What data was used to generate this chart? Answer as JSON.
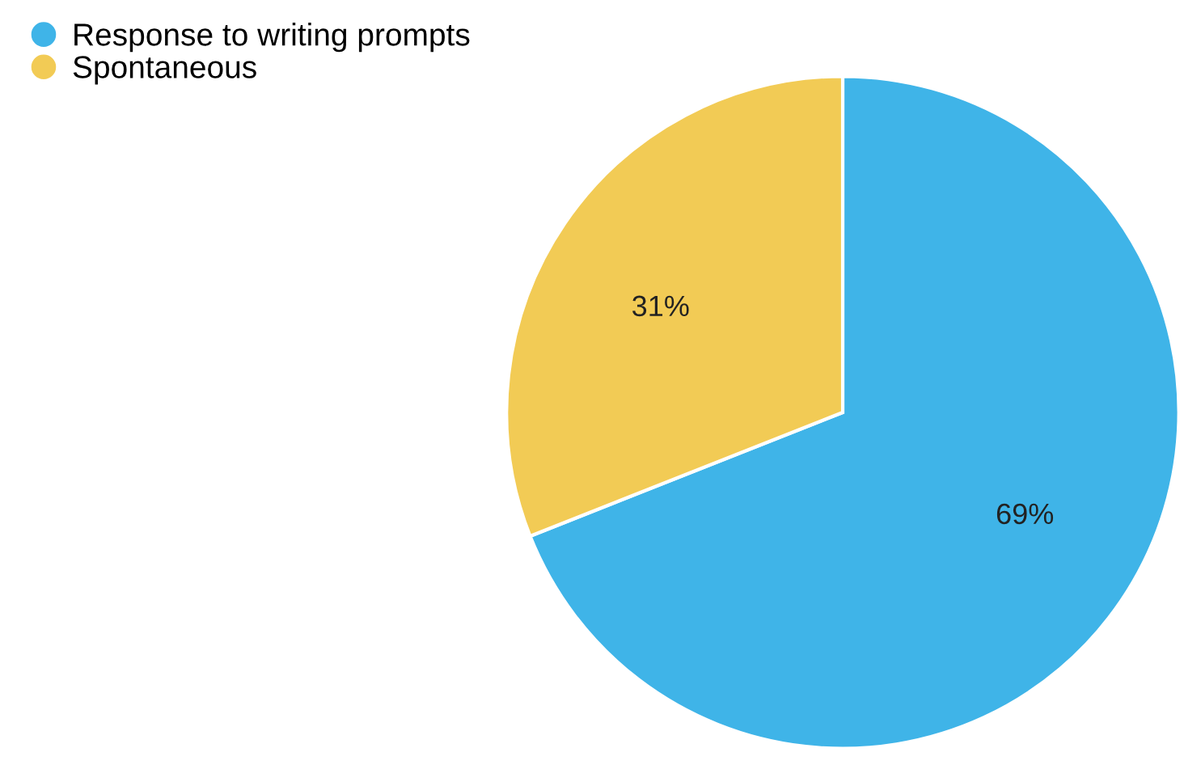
{
  "chart_data": {
    "type": "pie",
    "categories": [
      "Response to writing prompts",
      "Spontaneous"
    ],
    "values": [
      69,
      31
    ],
    "colors": [
      "#3fb4e8",
      "#f2cb55"
    ],
    "value_labels": [
      "69%",
      "31%"
    ],
    "legend": "top left"
  }
}
